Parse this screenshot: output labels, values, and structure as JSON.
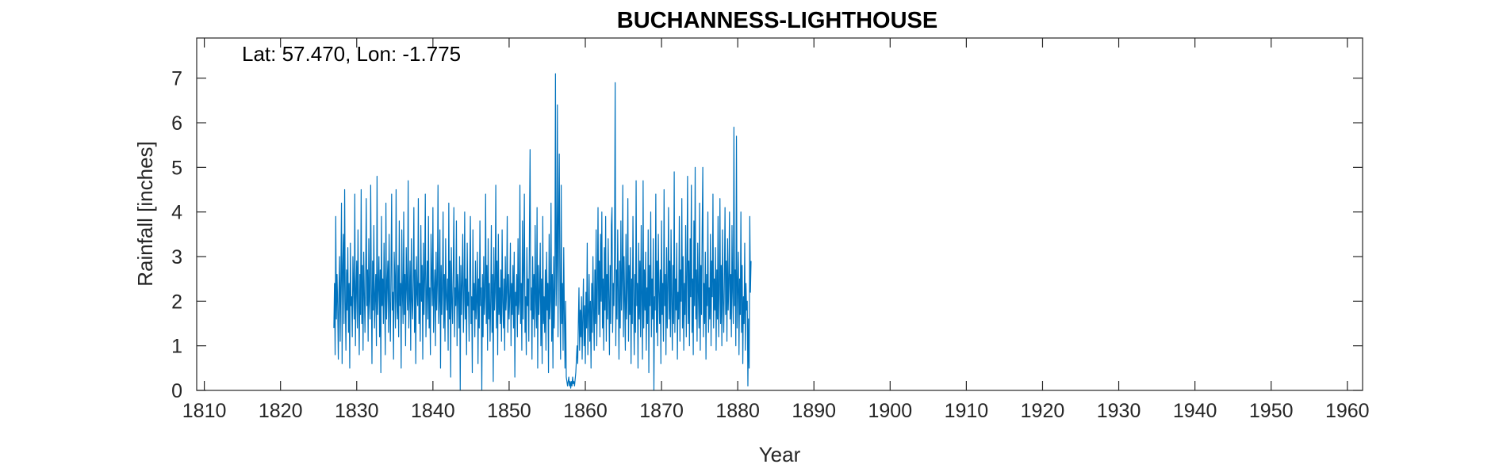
{
  "chart_data": {
    "type": "line",
    "title": "BUCHANNESS-LIGHTHOUSE",
    "annotation": "Lat: 57.470, Lon: -1.775",
    "xlabel": "Year",
    "ylabel": "Rainfall [inches]",
    "xlim": [
      1809,
      1962
    ],
    "ylim": [
      0,
      7.9
    ],
    "x_ticks": [
      1810,
      1820,
      1830,
      1840,
      1850,
      1860,
      1870,
      1880,
      1890,
      1900,
      1910,
      1920,
      1930,
      1940,
      1950,
      1960
    ],
    "y_ticks": [
      0,
      1,
      2,
      3,
      4,
      5,
      6,
      7
    ],
    "grid": false,
    "line_color": "#0072BD",
    "series": [
      {
        "start_year": 1827.0,
        "step_years": 0.0833333,
        "values": [
          1.4,
          2.4,
          0.8,
          3.9,
          1.6,
          2.6,
          1.9,
          0.7,
          2.2,
          3.0,
          1.1,
          2.5,
          4.2,
          0.6,
          2.8,
          3.5,
          1.5,
          4.5,
          2.0,
          0.9,
          2.7,
          1.8,
          3.2,
          1.3,
          2.4,
          0.5,
          3.3,
          1.9,
          2.1,
          1.2,
          3.0,
          2.3,
          1.6,
          4.4,
          1.0,
          2.2,
          2.9,
          1.4,
          3.6,
          2.0,
          0.8,
          2.6,
          1.7,
          4.5,
          1.5,
          2.8,
          0.9,
          3.1,
          2.2,
          1.3,
          2.5,
          4.3,
          1.9,
          2.7,
          1.1,
          3.4,
          2.0,
          1.6,
          4.6,
          2.4,
          0.6,
          2.9,
          1.8,
          3.7,
          1.4,
          2.1,
          2.6,
          1.0,
          4.8,
          1.7,
          2.3,
          3.0,
          1.2,
          2.7,
          0.4,
          3.9,
          1.9,
          2.5,
          1.5,
          3.3,
          2.1,
          0.8,
          4.2,
          1.6,
          2.4,
          2.9,
          1.3,
          3.5,
          2.0,
          1.1,
          2.6,
          4.4,
          1.8,
          2.2,
          0.7,
          3.1,
          2.5,
          1.4,
          4.5,
          2.0,
          1.6,
          2.8,
          1.2,
          3.8,
          1.9,
          2.4,
          0.5,
          3.6,
          2.2,
          1.5,
          4.0,
          1.7,
          2.6,
          1.0,
          3.2,
          2.3,
          1.8,
          4.7,
          1.4,
          2.1,
          2.9,
          0.9,
          3.4,
          2.0,
          1.6,
          2.5,
          4.1,
          1.3,
          2.7,
          0.6,
          3.0,
          2.2,
          1.9,
          4.3,
          1.5,
          2.4,
          1.1,
          3.7,
          2.0,
          2.8,
          0.7,
          3.3,
          1.7,
          2.5,
          4.4,
          1.2,
          2.1,
          2.9,
          1.6,
          3.9,
          1.4,
          2.3,
          0.8,
          3.5,
          2.6,
          1.9,
          4.1,
          1.3,
          2.2,
          2.7,
          1.0,
          3.1,
          1.8,
          2.4,
          4.6,
          1.5,
          2.0,
          3.6,
          0.5,
          2.8,
          1.7,
          2.3,
          4.0,
          1.4,
          2.6,
          1.1,
          3.4,
          2.1,
          1.8,
          2.5,
          0.9,
          4.2,
          1.6,
          2.9,
          0.3,
          3.2,
          2.0,
          1.5,
          2.7,
          4.1,
          1.2,
          2.3,
          1.9,
          3.8,
          1.0,
          2.6,
          2.2,
          1.4,
          3.0,
          0.0,
          2.8,
          1.7,
          2.4,
          3.5,
          1.3,
          2.0,
          4.0,
          1.6,
          2.5,
          0.8,
          3.3,
          1.9,
          2.2,
          1.1,
          2.7,
          3.9,
          1.5,
          2.1,
          0.4,
          3.6,
          1.8,
          2.4,
          1.2,
          2.9,
          1.6,
          2.0,
          3.1,
          0.6,
          2.5,
          1.4,
          3.8,
          1.9,
          2.3,
          0.0,
          2.6,
          1.2,
          3.0,
          1.7,
          2.1,
          4.4,
          1.5,
          2.8,
          0.9,
          3.4,
          1.6,
          2.4,
          1.1,
          2.0,
          3.7,
          1.3,
          2.6,
          0.2,
          3.2,
          1.8,
          2.2,
          4.6,
          1.4,
          2.9,
          0.8,
          3.5,
          1.7,
          2.3,
          1.5,
          2.7,
          1.1,
          3.6,
          2.0,
          1.4,
          2.5,
          0.9,
          3.0,
          1.8,
          2.2,
          3.9,
          1.3,
          2.6,
          1.6,
          2.1,
          3.3,
          1.0,
          2.4,
          1.7,
          2.8,
          1.4,
          3.1,
          0.3,
          2.2,
          1.9,
          2.6,
          1.2,
          3.4,
          1.7,
          2.0,
          4.6,
          1.5,
          2.4,
          0.9,
          3.8,
          1.6,
          2.7,
          4.4,
          1.3,
          2.1,
          0.8,
          3.2,
          1.9,
          2.5,
          1.1,
          3.6,
          5.4,
          1.8,
          2.3,
          0.7,
          3.0,
          1.6,
          2.6,
          1.2,
          3.7,
          2.0,
          1.4,
          4.1,
          0.5,
          2.8,
          1.7,
          2.2,
          3.3,
          1.0,
          2.5,
          0.6,
          3.9,
          1.5,
          2.1,
          1.3,
          2.7,
          0.9,
          3.1,
          1.8,
          2.4,
          0.4,
          3.5,
          1.6,
          2.0,
          4.2,
          1.1,
          2.6,
          0.5,
          3.0,
          1.4,
          2.3,
          7.1,
          1.9,
          2.8,
          6.4,
          1.2,
          3.8,
          5.3,
          2.1,
          0.7,
          4.6,
          1.5,
          2.4,
          0.9,
          3.2,
          1.7,
          0.5,
          2.0,
          0.3,
          0.2,
          0.1,
          0.2,
          0.3,
          0.1,
          0.2,
          0.05,
          0.2,
          0.1,
          0.3,
          0.15,
          0.2,
          0.1,
          0.25,
          0.4,
          0.7,
          1.0,
          0.6,
          1.5,
          2.3,
          0.9,
          1.8,
          1.2,
          2.1,
          0.7,
          1.6,
          2.5,
          1.0,
          1.9,
          0.6,
          2.2,
          1.4,
          3.3,
          0.8,
          1.7,
          2.6,
          1.1,
          2.0,
          0.5,
          2.4,
          1.3,
          3.0,
          1.8,
          0.9,
          2.7,
          1.5,
          3.6,
          1.0,
          2.2,
          4.1,
          1.7,
          2.9,
          1.2,
          3.5,
          2.0,
          4.0,
          1.4,
          2.5,
          0.9,
          3.2,
          1.8,
          3.9,
          1.1,
          2.6,
          1.6,
          3.4,
          2.1,
          0.8,
          2.8,
          1.5,
          3.7,
          4.1,
          1.3,
          2.4,
          1.9,
          3.1,
          6.9,
          1.0,
          2.7,
          1.6,
          3.6,
          2.2,
          0.7,
          2.9,
          1.4,
          3.8,
          1.8,
          2.5,
          4.6,
          1.2,
          3.0,
          2.0,
          0.9,
          3.5,
          1.6,
          2.3,
          4.3,
          1.1,
          2.8,
          1.7,
          3.2,
          0.6,
          2.5,
          1.5,
          3.9,
          2.1,
          0.8,
          2.6,
          1.3,
          4.7,
          1.9,
          2.4,
          0.5,
          3.3,
          1.6,
          2.9,
          1.2,
          3.7,
          2.0,
          0.7,
          4.7,
          1.4,
          2.7,
          1.8,
          3.1,
          0.9,
          2.3,
          1.5,
          3.6,
          0.4,
          2.8,
          1.9,
          4.0,
          1.2,
          2.5,
          1.6,
          3.4,
          0.0,
          2.1,
          1.8,
          4.4,
          1.3,
          2.9,
          1.0,
          3.5,
          2.2,
          1.5,
          2.7,
          0.6,
          3.8,
          1.7,
          2.4,
          1.1,
          4.5,
          1.9,
          2.6,
          0.8,
          3.2,
          1.4,
          2.3,
          4.1,
          1.6,
          2.9,
          1.2,
          3.6,
          2.0,
          0.9,
          2.8,
          1.5,
          4.9,
          1.3,
          2.5,
          1.8,
          3.3,
          0.7,
          2.2,
          1.6,
          3.9,
          1.1,
          2.7,
          2.0,
          4.3,
          1.4,
          3.0,
          0.9,
          2.4,
          1.7,
          3.7,
          1.2,
          2.6,
          4.8,
          1.5,
          2.9,
          1.0,
          3.4,
          2.1,
          4.6,
          1.3,
          2.5,
          0.8,
          3.8,
          1.9,
          5.0,
          1.6,
          2.7,
          1.1,
          3.3,
          2.2,
          1.4,
          4.2,
          0.9,
          2.8,
          1.7,
          3.6,
          5.0,
          1.2,
          2.4,
          1.5,
          3.1,
          0.7,
          2.6,
          1.9,
          4.0,
          1.3,
          2.3,
          1.6,
          3.5,
          1.0,
          2.9,
          2.1,
          4.4,
          1.4,
          2.5,
          1.8,
          3.2,
          0.9,
          2.7,
          1.6,
          3.9,
          1.2,
          2.2,
          4.3,
          1.5,
          2.8,
          1.0,
          3.6,
          2.0,
          1.3,
          2.5,
          4.1,
          1.7,
          2.9,
          1.1,
          3.4,
          1.8,
          2.4,
          4.0,
          1.6,
          2.6,
          1.2,
          3.7,
          2.2,
          1.5,
          5.9,
          1.9,
          2.7,
          1.0,
          5.7,
          1.4,
          2.3,
          3.1,
          0.8,
          2.5,
          1.7,
          4.0,
          1.3,
          2.8,
          0.6,
          2.1,
          1.5,
          3.3,
          0.9,
          2.4,
          1.8,
          2.0,
          0.1,
          1.6,
          0.5,
          3.9,
          2.2,
          2.9
        ]
      }
    ]
  }
}
